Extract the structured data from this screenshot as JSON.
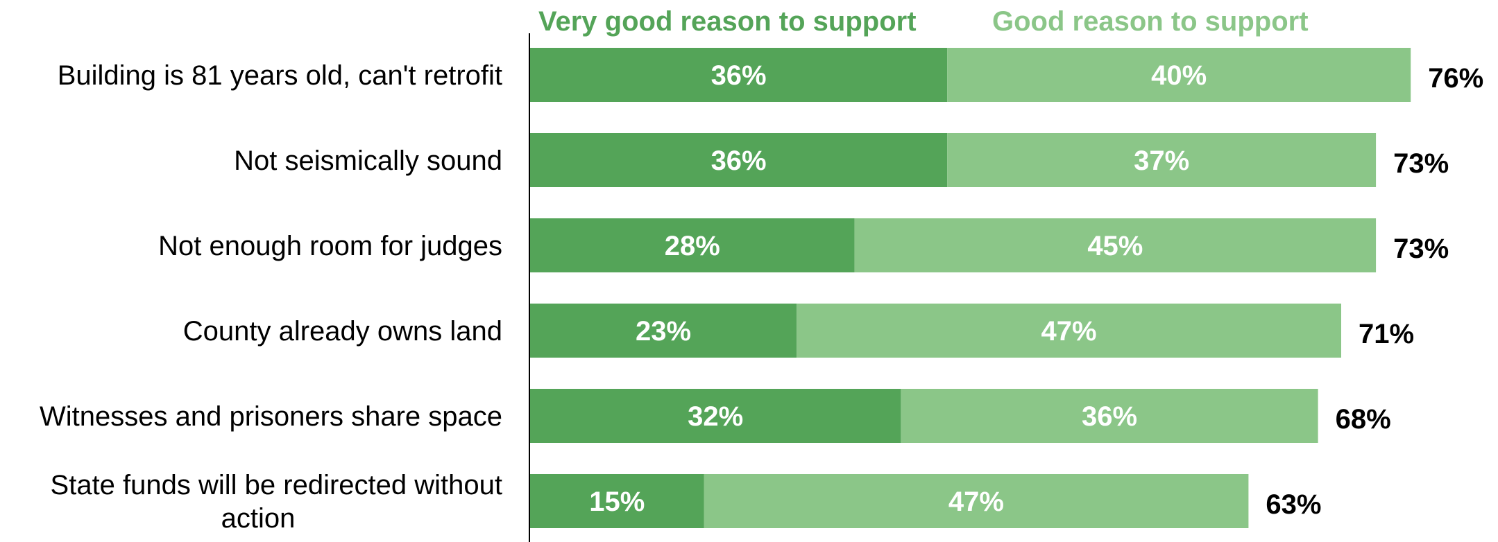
{
  "chart_data": {
    "type": "bar",
    "orientation": "horizontal",
    "stacked": true,
    "categories": [
      "Building is 81 years old, can't retrofit",
      "Not seismically sound",
      "Not enough room for judges",
      "County already owns land",
      "Witnesses and prisoners share space",
      "State funds will be redirected without action"
    ],
    "series": [
      {
        "name": "Very good reason to support",
        "color": "#54a458",
        "values": [
          36,
          36,
          28,
          23,
          32,
          15
        ],
        "labels": [
          "36%",
          "36%",
          "28%",
          "23%",
          "32%",
          "15%"
        ]
      },
      {
        "name": "Good reason to support",
        "color": "#8bc688",
        "values": [
          40,
          37,
          45,
          47,
          36,
          47
        ],
        "labels": [
          "40%",
          "37%",
          "45%",
          "47%",
          "36%",
          "47%"
        ]
      }
    ],
    "totals": [
      76,
      73,
      73,
      71,
      68,
      63
    ],
    "total_labels": [
      "76%",
      "73%",
      "73%",
      "71%",
      "68%",
      "63%"
    ],
    "xlim": [
      0,
      80
    ],
    "legend_position": "top",
    "grid": false,
    "title": "",
    "xlabel": "",
    "ylabel": ""
  }
}
